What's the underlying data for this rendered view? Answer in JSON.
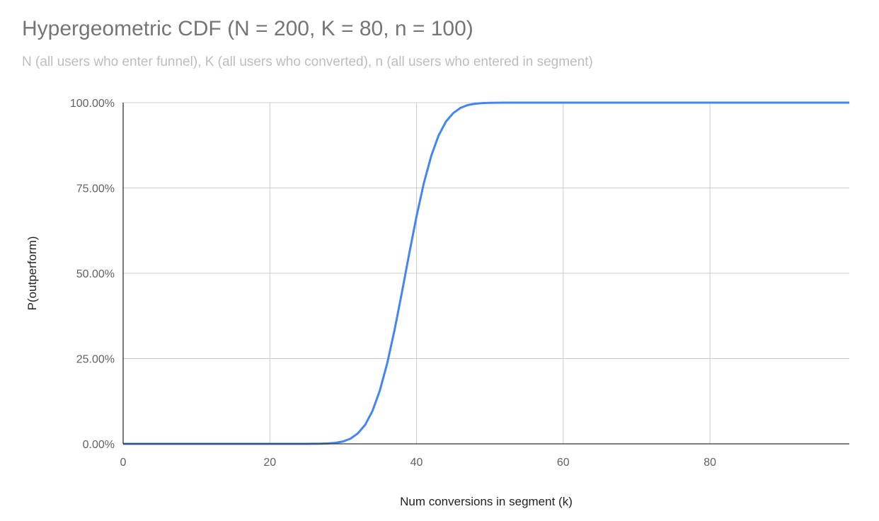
{
  "chart_data": {
    "type": "line",
    "title": "Hypergeometric CDF (N = 200, K = 80, n = 100)",
    "subtitle": "N (all users who enter funnel), K (all users who converted), n (all users who entered in segment)",
    "xlabel": "Num conversions in segment (k)",
    "ylabel": "P(outperform)",
    "xlim": [
      0,
      99
    ],
    "ylim": [
      0,
      1
    ],
    "x_ticks": [
      0,
      20,
      40,
      60,
      80
    ],
    "x_tick_labels": [
      "0",
      "20",
      "40",
      "60",
      "80"
    ],
    "y_ticks": [
      0,
      0.25,
      0.5,
      0.75,
      1
    ],
    "y_tick_labels": [
      "0.00%",
      "25.00%",
      "50.00%",
      "75.00%",
      "100.00%"
    ],
    "grid": true,
    "legend": "none",
    "series_color": "#4285f4",
    "series": [
      {
        "x": [
          0,
          1,
          2,
          3,
          4,
          5,
          6,
          7,
          8,
          9,
          10,
          11,
          12,
          13,
          14,
          15,
          16,
          17,
          18,
          19,
          20,
          21,
          22,
          23,
          24,
          25,
          26,
          27,
          28,
          29,
          30,
          31,
          32,
          33,
          34,
          35,
          36,
          37,
          38,
          39,
          40,
          41,
          42,
          43,
          44,
          45,
          46,
          47,
          48,
          49,
          50,
          51,
          52,
          53,
          54,
          55,
          56,
          57,
          58,
          59,
          60,
          61,
          62,
          63,
          64,
          65,
          66,
          67,
          68,
          69,
          70,
          71,
          72,
          73,
          74,
          75,
          76,
          77,
          78,
          79,
          80,
          81,
          82,
          83,
          84,
          85,
          86,
          87,
          88,
          89,
          90,
          91,
          92,
          93,
          94,
          95,
          96,
          97,
          98,
          99
        ],
        "values": [
          0,
          0,
          0,
          0,
          0,
          0,
          0,
          0,
          0,
          0,
          0,
          0,
          0,
          0,
          0,
          0,
          0,
          0,
          0,
          0,
          0,
          0,
          0,
          0,
          0,
          0.0001,
          0.0002,
          0.0005,
          0.0012,
          0.0031,
          0.0071,
          0.0154,
          0.0307,
          0.0559,
          0.0968,
          0.1562,
          0.2358,
          0.3336,
          0.4427,
          0.5573,
          0.6664,
          0.7642,
          0.8438,
          0.9032,
          0.9441,
          0.9693,
          0.9846,
          0.9929,
          0.9969,
          0.9988,
          0.9995,
          0.9998,
          1,
          1,
          1,
          1,
          1,
          1,
          1,
          1,
          1,
          1,
          1,
          1,
          1,
          1,
          1,
          1,
          1,
          1,
          1,
          1,
          1,
          1,
          1,
          1,
          1,
          1,
          1,
          1,
          1,
          1,
          1,
          1,
          1,
          1,
          1,
          1,
          1,
          1,
          1,
          1,
          1,
          1,
          1,
          1,
          1,
          1,
          1,
          1
        ]
      }
    ]
  }
}
